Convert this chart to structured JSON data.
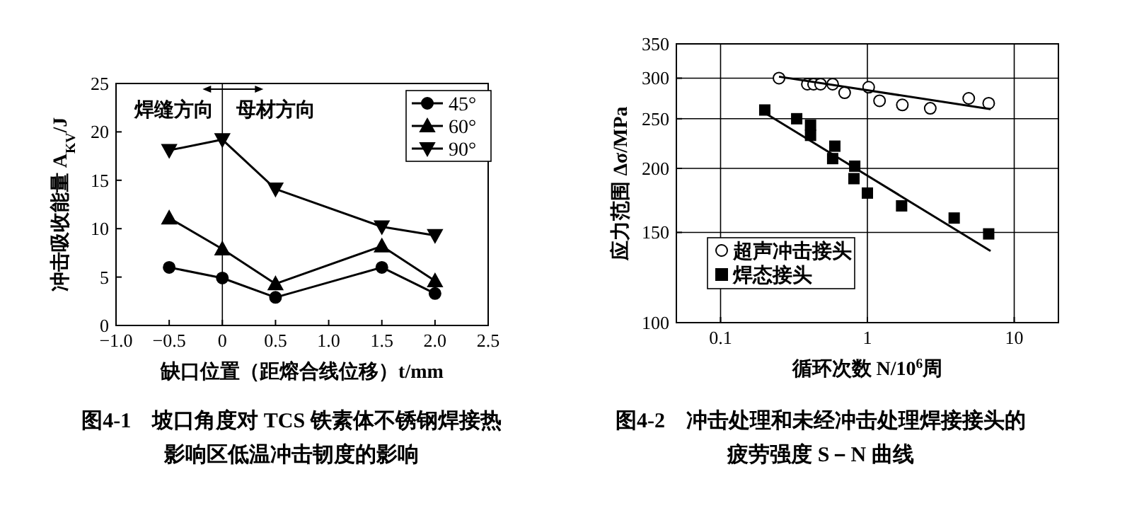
{
  "chart_data": [
    {
      "type": "line",
      "title": "图4-1　坡口角度对 TCS 铁素体不锈钢焊接热影响区低温冲击韧度的影响",
      "xlabel": "缺口位置（距熔合线位移）t/mm",
      "ylabel": "冲击吸收能量 A$_{KV}$/J",
      "x": [
        -0.5,
        0,
        0.5,
        1.5,
        2.0
      ],
      "xlim": [
        -1.0,
        2.5
      ],
      "xticks": [
        {
          "value": -1,
          "label": "−1.0"
        },
        {
          "value": -0.5,
          "label": "−0.5"
        },
        0,
        0.5,
        {
          "value": 1,
          "label": "1.0"
        },
        1.5,
        {
          "value": 2,
          "label": "2.0"
        },
        2.5
      ],
      "ylim": [
        0,
        25
      ],
      "yticks": [
        0,
        5,
        10,
        15,
        20,
        25
      ],
      "series": [
        {
          "name": "45°",
          "color": "#000000",
          "marker": "circle",
          "values": [
            6.0,
            4.9,
            2.9,
            6.0,
            3.3
          ]
        },
        {
          "name": "60°",
          "color": "#000000",
          "marker": "triangle",
          "values": [
            11.1,
            7.9,
            4.3,
            8.2,
            4.6
          ]
        },
        {
          "name": "90°",
          "color": "#000000",
          "marker": "triangle-down",
          "values": [
            18.1,
            19.2,
            14.1,
            10.2,
            9.3
          ]
        }
      ],
      "ref_lines": [
        {
          "axis": "x",
          "value": 0
        }
      ],
      "annotations": [
        "焊缝方向",
        "母材方向"
      ],
      "legend": "top right",
      "grid": false
    },
    {
      "type": "scatter",
      "title": "图4-2　冲击处理和未经冲击处理焊接接头的疲劳强度 S－N 曲线",
      "xlabel": "循环次数 N/10$^{6}$周",
      "ylabel": "应力范围 Δσ/MPa",
      "log": "xy",
      "xlim": [
        0.05,
        20
      ],
      "xticks": [
        0.1,
        1,
        10
      ],
      "ylim": [
        100,
        350
      ],
      "yticks": [
        100,
        150,
        200,
        250,
        300,
        350
      ],
      "series": [
        {
          "name": "超声冲击接头",
          "color": "#ffffff",
          "marker": "circle",
          "x": [
            0.25,
            0.39,
            0.43,
            0.48,
            0.58,
            0.7,
            1.02,
            1.21,
            1.73,
            2.68,
            4.9,
            6.7
          ],
          "values": [
            300,
            292,
            292,
            292,
            292,
            281,
            288,
            271,
            266,
            262,
            274,
            268
          ]
        },
        {
          "name": "焊态接头",
          "color": "#000000",
          "marker": "square",
          "x": [
            0.2,
            0.33,
            0.41,
            0.41,
            0.58,
            0.6,
            0.81,
            0.82,
            1.0,
            1.71,
            3.9,
            6.7
          ],
          "values": [
            260,
            250,
            243,
            232,
            209,
            221,
            191,
            202,
            179,
            169,
            160,
            149
          ]
        },
        {
          "type": "line",
          "color": "#000000",
          "x": [
            0.25,
            6.9
          ],
          "values": [
            302,
            261
          ]
        },
        {
          "type": "line",
          "color": "#000000",
          "x": [
            0.19,
            6.9
          ],
          "values": [
            259,
            138
          ]
        }
      ],
      "legend": "bottom left",
      "grid": true
    }
  ]
}
